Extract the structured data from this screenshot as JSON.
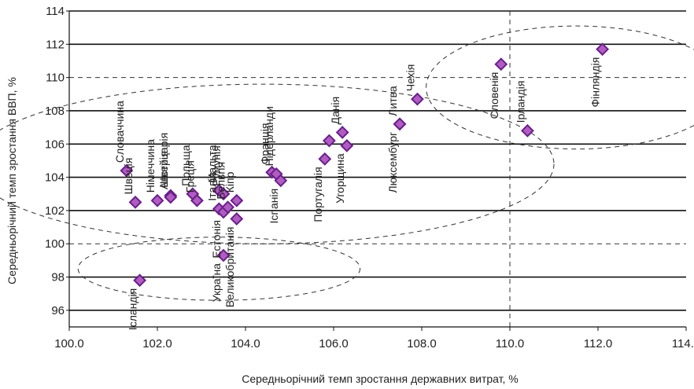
{
  "chart_data": {
    "type": "scatter",
    "xlabel": "Середньорічний темп зростання державних витрат, %",
    "ylabel": "Середньорічний темп зростання ВВП, %",
    "xlim": [
      100.0,
      114.0
    ],
    "ylim": [
      95,
      114
    ],
    "x_ticks": [
      "100.0",
      "102.0",
      "104.0",
      "106.0",
      "108.0",
      "110.0",
      "112.0",
      "114.0"
    ],
    "y_ticks": [
      "96",
      "98",
      "100",
      "102",
      "104",
      "106",
      "108",
      "110",
      "112",
      "114"
    ],
    "grid": "horizontal",
    "marker_color": "#b05cc0",
    "marker_edge": "#6a1f8a",
    "reference_lines": {
      "x": 110.0,
      "y": [
        100,
        110
      ],
      "style": "dashed"
    },
    "points": [
      {
        "label": "Ісландія",
        "x": 101.6,
        "y": 97.8
      },
      {
        "label": "Україна",
        "x": 103.5,
        "y": 99.3
      },
      {
        "label": "Швеція",
        "x": 101.5,
        "y": 102.5
      },
      {
        "label": "Словаччина",
        "x": 101.3,
        "y": 104.4
      },
      {
        "label": "Німеччина",
        "x": 102.0,
        "y": 102.6
      },
      {
        "label": "Швейцарія",
        "x": 102.3,
        "y": 102.9
      },
      {
        "label": "Австрія",
        "x": 102.3,
        "y": 102.8
      },
      {
        "label": "Греція",
        "x": 102.9,
        "y": 102.6
      },
      {
        "label": "Польща",
        "x": 102.8,
        "y": 103.0
      },
      {
        "label": "Італія",
        "x": 103.4,
        "y": 102.1
      },
      {
        "label": "Мальта",
        "x": 103.4,
        "y": 103.2
      },
      {
        "label": "Естонія",
        "x": 103.5,
        "y": 101.9
      },
      {
        "label": "Бельгія",
        "x": 103.6,
        "y": 102.2
      },
      {
        "label": "Кіпр",
        "x": 103.8,
        "y": 102.6
      },
      {
        "label": "Великобританія",
        "x": 103.8,
        "y": 101.5
      },
      {
        "label": "Румунія",
        "x": 103.5,
        "y": 103.0
      },
      {
        "label": "Франція",
        "x": 104.6,
        "y": 104.3
      },
      {
        "label": "Нідерланди",
        "x": 104.7,
        "y": 104.2
      },
      {
        "label": "Іспанія",
        "x": 104.8,
        "y": 103.8
      },
      {
        "label": "Португалія",
        "x": 105.8,
        "y": 105.1
      },
      {
        "label": "Словаччина_b",
        "x": 105.9,
        "y": 106.2
      },
      {
        "label": "Данія",
        "x": 106.2,
        "y": 106.7
      },
      {
        "label": "Угорщина",
        "x": 106.3,
        "y": 105.9
      },
      {
        "label": "Люксембург",
        "x": 107.5,
        "y": 107.2
      },
      {
        "label": "Литва",
        "x": 107.5,
        "y": 107.2
      },
      {
        "label": "Чехія",
        "x": 107.9,
        "y": 108.7
      },
      {
        "label": "Словенія",
        "x": 109.8,
        "y": 110.8
      },
      {
        "label": "Ірландія",
        "x": 110.4,
        "y": 106.8
      },
      {
        "label": "Фінляндія",
        "x": 112.1,
        "y": 111.7
      }
    ],
    "label_texts": {
      "Ісландія": "Ісландія",
      "Україна": "Україна",
      "Швеція": "Швеція",
      "Словаччина": "Словаччина",
      "Німеччина": "Німеччина",
      "Швейцарія": "Швейцарія",
      "Австрія": "Австрія",
      "Греція": "Греція",
      "Польща": "Польща",
      "Італія": "Італія",
      "Мальта": "Мальта",
      "Естонія": "Естонія",
      "Бельгія": "Бельгія",
      "Кіпр": "Кіпр",
      "Великобританія": "Великобританія",
      "Румунія": "Румунія",
      "Франція": "Франція",
      "Нідерланди": "Нідерланди",
      "Іспанія": "Іспанія",
      "Португалія": "Португалія",
      "Данія": "Данія",
      "Угорщина": "Угорщина",
      "Люксембург": "Люксембург",
      "Литва": "Литва",
      "Чехія": "Чехія",
      "Словенія": "Словенія",
      "Ірландія": "Ірландія",
      "Фінляндія": "Фінляндія"
    },
    "clusters": [
      {
        "cx": 103.4,
        "cy": 98.5,
        "rx": 3.2,
        "ry": 1.9
      },
      {
        "cx": 104.4,
        "cy": 104.8,
        "rx": 6.6,
        "ry": 4.8
      },
      {
        "cx": 111.5,
        "cy": 109.4,
        "rx": 3.4,
        "ry": 3.7
      }
    ]
  }
}
